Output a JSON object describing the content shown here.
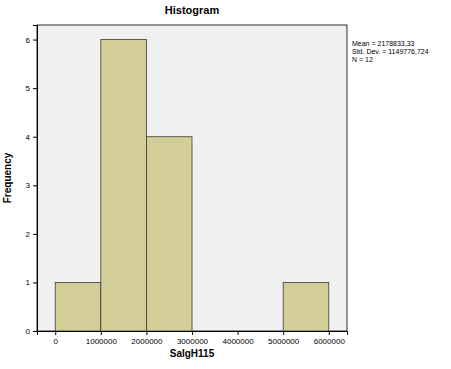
{
  "chart_data": {
    "type": "histogram",
    "title": "Histogram",
    "x_label": "SalgH115",
    "y_label": "Frequency",
    "bins": [
      0,
      1000000,
      2000000,
      3000000,
      4000000,
      5000000,
      6000000
    ],
    "values": [
      1,
      6,
      4,
      0,
      0,
      1
    ],
    "color": "#d3ce97",
    "xlim": [
      -400000,
      6400000
    ],
    "ylim": [
      0,
      6.3
    ],
    "xticks": [
      0,
      1000000,
      2000000,
      3000000,
      4000000,
      5000000,
      6000000
    ],
    "yticks": [
      0,
      1,
      2,
      3,
      4,
      5,
      6
    ],
    "annotations": [
      "Mean = 2178833,33",
      "Std. Dev. = 1149776,724",
      "N = 12"
    ]
  }
}
